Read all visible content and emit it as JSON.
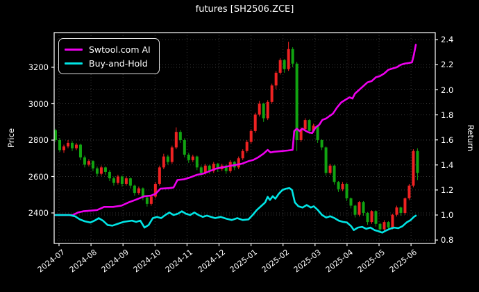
{
  "header": {
    "title": "futures [SH2506.ZCE]"
  },
  "legend": {
    "items": [
      {
        "label": "Swtool.com AI",
        "color": "#ee00ee"
      },
      {
        "label": "Buy-and-Hold",
        "color": "#00e5e5"
      }
    ]
  },
  "chart_data": {
    "type": "candlestick+line",
    "title": "futures [SH2506.ZCE]",
    "grid": "dotted",
    "legend_position": "upper-left",
    "x_axis": {
      "tick_labels": [
        "2024-07",
        "2024-08",
        "2024-09",
        "2024-10",
        "2024-11",
        "2024-12",
        "2025-01",
        "2025-02",
        "2025-03",
        "2025-04",
        "2025-05",
        "2025-06"
      ],
      "label_rotation_deg": -38
    },
    "price_axis": {
      "label": "Price",
      "side": "left",
      "ticks": [
        {
          "v": 2400,
          "label": "2400"
        },
        {
          "v": 2600,
          "label": "2600"
        },
        {
          "v": 2800,
          "label": "2800"
        },
        {
          "v": 3000,
          "label": "3000"
        },
        {
          "v": 3200,
          "label": "3200"
        }
      ],
      "range": [
        2232,
        3390
      ]
    },
    "return_axis": {
      "label": "Return",
      "side": "right",
      "ticks": [
        {
          "v": 0.8,
          "label": "0.8"
        },
        {
          "v": 1.0,
          "label": "1.0"
        },
        {
          "v": 1.2,
          "label": "1.2"
        },
        {
          "v": 1.4,
          "label": "1.4"
        },
        {
          "v": 1.6,
          "label": "1.6"
        },
        {
          "v": 1.8,
          "label": "1.8"
        },
        {
          "v": 2.0,
          "label": "2.0"
        },
        {
          "v": 2.2,
          "label": "2.2"
        },
        {
          "v": 2.4,
          "label": "2.4"
        }
      ],
      "range": [
        0.78,
        2.47
      ]
    },
    "colors": {
      "up_candle": "#ee2222",
      "down_candle": "#11a411",
      "ai_line": "#ee00ee",
      "bh_line": "#00e5e5",
      "grid": "#3a3a3a",
      "frame": "#ffffff",
      "text": "#ffffff",
      "background": "#000000"
    },
    "candles": {
      "note": "m = months after 2024-07 tick; rows are [open,high,low,close]; red=up, green=down (CN convention)",
      "t0": -0.108,
      "dt": 0.13,
      "ohlc": [
        [
          2855,
          2862,
          2790,
          2800
        ],
        [
          2800,
          2810,
          2735,
          2745
        ],
        [
          2745,
          2775,
          2730,
          2765
        ],
        [
          2765,
          2800,
          2755,
          2785
        ],
        [
          2785,
          2795,
          2740,
          2755
        ],
        [
          2755,
          2785,
          2745,
          2775
        ],
        [
          2775,
          2780,
          2690,
          2705
        ],
        [
          2705,
          2715,
          2650,
          2665
        ],
        [
          2665,
          2695,
          2655,
          2685
        ],
        [
          2685,
          2690,
          2630,
          2645
        ],
        [
          2645,
          2655,
          2600,
          2615
        ],
        [
          2615,
          2660,
          2605,
          2650
        ],
        [
          2650,
          2655,
          2610,
          2625
        ],
        [
          2625,
          2635,
          2575,
          2590
        ],
        [
          2590,
          2600,
          2550,
          2565
        ],
        [
          2565,
          2610,
          2555,
          2600
        ],
        [
          2600,
          2605,
          2545,
          2560
        ],
        [
          2560,
          2600,
          2550,
          2590
        ],
        [
          2590,
          2595,
          2535,
          2550
        ],
        [
          2550,
          2555,
          2495,
          2510
        ],
        [
          2510,
          2545,
          2500,
          2535
        ],
        [
          2535,
          2540,
          2470,
          2485
        ],
        [
          2485,
          2490,
          2435,
          2450
        ],
        [
          2450,
          2500,
          2440,
          2490
        ],
        [
          2490,
          2570,
          2480,
          2560
        ],
        [
          2560,
          2660,
          2550,
          2650
        ],
        [
          2650,
          2725,
          2640,
          2710
        ],
        [
          2710,
          2720,
          2665,
          2680
        ],
        [
          2680,
          2770,
          2670,
          2760
        ],
        [
          2760,
          2870,
          2750,
          2845
        ],
        [
          2845,
          2855,
          2785,
          2800
        ],
        [
          2800,
          2810,
          2705,
          2720
        ],
        [
          2720,
          2730,
          2675,
          2690
        ],
        [
          2690,
          2720,
          2680,
          2710
        ],
        [
          2710,
          2715,
          2635,
          2650
        ],
        [
          2650,
          2660,
          2605,
          2620
        ],
        [
          2620,
          2670,
          2610,
          2660
        ],
        [
          2660,
          2665,
          2615,
          2630
        ],
        [
          2630,
          2680,
          2620,
          2670
        ],
        [
          2670,
          2675,
          2625,
          2640
        ],
        [
          2640,
          2670,
          2630,
          2660
        ],
        [
          2660,
          2665,
          2615,
          2630
        ],
        [
          2630,
          2690,
          2620,
          2680
        ],
        [
          2680,
          2685,
          2635,
          2650
        ],
        [
          2650,
          2710,
          2640,
          2700
        ],
        [
          2700,
          2750,
          2690,
          2740
        ],
        [
          2740,
          2800,
          2730,
          2790
        ],
        [
          2790,
          2860,
          2780,
          2850
        ],
        [
          2850,
          2950,
          2840,
          2940
        ],
        [
          2940,
          3015,
          2930,
          3000
        ],
        [
          3000,
          3005,
          2900,
          2920
        ],
        [
          2920,
          3020,
          2910,
          3010
        ],
        [
          3010,
          3110,
          3000,
          3100
        ],
        [
          3100,
          3180,
          3080,
          3170
        ],
        [
          3170,
          3250,
          3160,
          3240
        ],
        [
          3240,
          3245,
          3170,
          3190
        ],
        [
          3190,
          3340,
          3180,
          3300
        ],
        [
          3300,
          3310,
          3200,
          3220
        ],
        [
          3220,
          3230,
          2740,
          2800
        ],
        [
          2800,
          2870,
          2790,
          2860
        ],
        [
          2860,
          2920,
          2850,
          2910
        ],
        [
          2910,
          2915,
          2835,
          2850
        ],
        [
          2850,
          2890,
          2840,
          2880
        ],
        [
          2880,
          2885,
          2785,
          2800
        ],
        [
          2800,
          2805,
          2745,
          2760
        ],
        [
          2760,
          2765,
          2605,
          2620
        ],
        [
          2620,
          2670,
          2610,
          2660
        ],
        [
          2660,
          2665,
          2555,
          2570
        ],
        [
          2570,
          2575,
          2515,
          2530
        ],
        [
          2530,
          2570,
          2520,
          2560
        ],
        [
          2560,
          2565,
          2465,
          2480
        ],
        [
          2480,
          2485,
          2425,
          2440
        ],
        [
          2440,
          2445,
          2375,
          2390
        ],
        [
          2390,
          2465,
          2380,
          2460
        ],
        [
          2460,
          2465,
          2385,
          2400
        ],
        [
          2400,
          2405,
          2335,
          2350
        ],
        [
          2350,
          2415,
          2340,
          2410
        ],
        [
          2410,
          2415,
          2325,
          2340
        ],
        [
          2340,
          2345,
          2290,
          2310
        ],
        [
          2310,
          2360,
          2300,
          2350
        ],
        [
          2350,
          2355,
          2305,
          2320
        ],
        [
          2320,
          2395,
          2310,
          2390
        ],
        [
          2390,
          2440,
          2380,
          2430
        ],
        [
          2430,
          2435,
          2385,
          2400
        ],
        [
          2400,
          2485,
          2390,
          2480
        ],
        [
          2480,
          2560,
          2470,
          2550
        ],
        [
          2550,
          2750,
          2540,
          2740
        ],
        [
          2740,
          2755,
          2580,
          2620
        ]
      ]
    },
    "series": [
      {
        "name": "Swtool.com AI",
        "axis": "return",
        "color_key": "ai_line",
        "points": [
          [
            -0.11,
            1.0
          ],
          [
            0.43,
            1.0
          ],
          [
            0.59,
            1.02
          ],
          [
            0.76,
            1.03
          ],
          [
            0.98,
            1.035
          ],
          [
            1.19,
            1.04
          ],
          [
            1.41,
            1.065
          ],
          [
            1.69,
            1.065
          ],
          [
            1.95,
            1.075
          ],
          [
            2.17,
            1.1
          ],
          [
            2.38,
            1.12
          ],
          [
            2.67,
            1.15
          ],
          [
            2.88,
            1.155
          ],
          [
            3.02,
            1.17
          ],
          [
            3.17,
            1.21
          ],
          [
            3.45,
            1.215
          ],
          [
            3.58,
            1.22
          ],
          [
            3.7,
            1.28
          ],
          [
            3.9,
            1.285
          ],
          [
            4.1,
            1.3
          ],
          [
            4.3,
            1.32
          ],
          [
            4.5,
            1.33
          ],
          [
            4.7,
            1.35
          ],
          [
            4.9,
            1.37
          ],
          [
            5.1,
            1.38
          ],
          [
            5.3,
            1.39
          ],
          [
            5.5,
            1.4
          ],
          [
            5.72,
            1.41
          ],
          [
            5.92,
            1.43
          ],
          [
            6.07,
            1.44
          ],
          [
            6.22,
            1.46
          ],
          [
            6.39,
            1.49
          ],
          [
            6.52,
            1.52
          ],
          [
            6.61,
            1.5
          ],
          [
            6.72,
            1.505
          ],
          [
            6.93,
            1.51
          ],
          [
            7.15,
            1.515
          ],
          [
            7.3,
            1.52
          ],
          [
            7.35,
            1.67
          ],
          [
            7.43,
            1.69
          ],
          [
            7.52,
            1.67
          ],
          [
            7.6,
            1.69
          ],
          [
            7.69,
            1.675
          ],
          [
            7.8,
            1.66
          ],
          [
            7.91,
            1.655
          ],
          [
            8.02,
            1.7
          ],
          [
            8.13,
            1.72
          ],
          [
            8.23,
            1.76
          ],
          [
            8.34,
            1.77
          ],
          [
            8.45,
            1.79
          ],
          [
            8.56,
            1.81
          ],
          [
            8.69,
            1.86
          ],
          [
            8.82,
            1.9
          ],
          [
            8.95,
            1.92
          ],
          [
            9.08,
            1.94
          ],
          [
            9.17,
            1.93
          ],
          [
            9.25,
            1.97
          ],
          [
            9.38,
            2.0
          ],
          [
            9.51,
            2.03
          ],
          [
            9.64,
            2.06
          ],
          [
            9.77,
            2.07
          ],
          [
            9.9,
            2.1
          ],
          [
            10.03,
            2.11
          ],
          [
            10.16,
            2.13
          ],
          [
            10.29,
            2.16
          ],
          [
            10.42,
            2.17
          ],
          [
            10.55,
            2.18
          ],
          [
            10.68,
            2.2
          ],
          [
            10.81,
            2.21
          ],
          [
            10.94,
            2.215
          ],
          [
            11.03,
            2.22
          ],
          [
            11.09,
            2.28
          ],
          [
            11.15,
            2.36
          ]
        ]
      },
      {
        "name": "Buy-and-Hold",
        "axis": "return",
        "color_key": "bh_line",
        "points": [
          [
            -0.11,
            1.0
          ],
          [
            0.33,
            1.0
          ],
          [
            0.5,
            0.99
          ],
          [
            0.65,
            0.965
          ],
          [
            0.8,
            0.95
          ],
          [
            0.98,
            0.94
          ],
          [
            1.11,
            0.955
          ],
          [
            1.24,
            0.975
          ],
          [
            1.37,
            0.955
          ],
          [
            1.52,
            0.92
          ],
          [
            1.67,
            0.915
          ],
          [
            1.84,
            0.93
          ],
          [
            2.02,
            0.945
          ],
          [
            2.15,
            0.95
          ],
          [
            2.28,
            0.955
          ],
          [
            2.41,
            0.945
          ],
          [
            2.54,
            0.955
          ],
          [
            2.67,
            0.9
          ],
          [
            2.8,
            0.92
          ],
          [
            2.93,
            0.975
          ],
          [
            3.06,
            0.985
          ],
          [
            3.19,
            0.975
          ],
          [
            3.32,
            1.0
          ],
          [
            3.45,
            1.02
          ],
          [
            3.58,
            1.0
          ],
          [
            3.71,
            1.01
          ],
          [
            3.84,
            1.03
          ],
          [
            3.97,
            1.01
          ],
          [
            4.1,
            1.0
          ],
          [
            4.23,
            1.02
          ],
          [
            4.36,
            1.0
          ],
          [
            4.49,
            0.985
          ],
          [
            4.62,
            0.995
          ],
          [
            4.75,
            0.985
          ],
          [
            4.88,
            0.975
          ],
          [
            5.05,
            0.985
          ],
          [
            5.23,
            0.97
          ],
          [
            5.4,
            0.96
          ],
          [
            5.57,
            0.975
          ],
          [
            5.74,
            0.96
          ],
          [
            5.92,
            0.965
          ],
          [
            6.05,
            1.0
          ],
          [
            6.18,
            1.04
          ],
          [
            6.31,
            1.07
          ],
          [
            6.44,
            1.1
          ],
          [
            6.52,
            1.145
          ],
          [
            6.59,
            1.12
          ],
          [
            6.68,
            1.15
          ],
          [
            6.76,
            1.13
          ],
          [
            6.87,
            1.17
          ],
          [
            6.98,
            1.2
          ],
          [
            7.09,
            1.21
          ],
          [
            7.2,
            1.215
          ],
          [
            7.28,
            1.2
          ],
          [
            7.37,
            1.1
          ],
          [
            7.48,
            1.07
          ],
          [
            7.61,
            1.06
          ],
          [
            7.74,
            1.08
          ],
          [
            7.87,
            1.06
          ],
          [
            7.96,
            1.07
          ],
          [
            8.09,
            1.04
          ],
          [
            8.22,
            1.0
          ],
          [
            8.35,
            0.98
          ],
          [
            8.48,
            0.99
          ],
          [
            8.61,
            0.975
          ],
          [
            8.74,
            0.955
          ],
          [
            8.87,
            0.945
          ],
          [
            9.0,
            0.94
          ],
          [
            9.13,
            0.91
          ],
          [
            9.21,
            0.88
          ],
          [
            9.34,
            0.9
          ],
          [
            9.47,
            0.905
          ],
          [
            9.6,
            0.89
          ],
          [
            9.73,
            0.9
          ],
          [
            9.86,
            0.88
          ],
          [
            9.99,
            0.87
          ],
          [
            10.1,
            0.86
          ],
          [
            10.21,
            0.875
          ],
          [
            10.34,
            0.89
          ],
          [
            10.47,
            0.9
          ],
          [
            10.6,
            0.895
          ],
          [
            10.73,
            0.91
          ],
          [
            10.86,
            0.94
          ],
          [
            10.99,
            0.96
          ],
          [
            11.09,
            0.985
          ],
          [
            11.15,
            0.995
          ]
        ]
      }
    ]
  }
}
